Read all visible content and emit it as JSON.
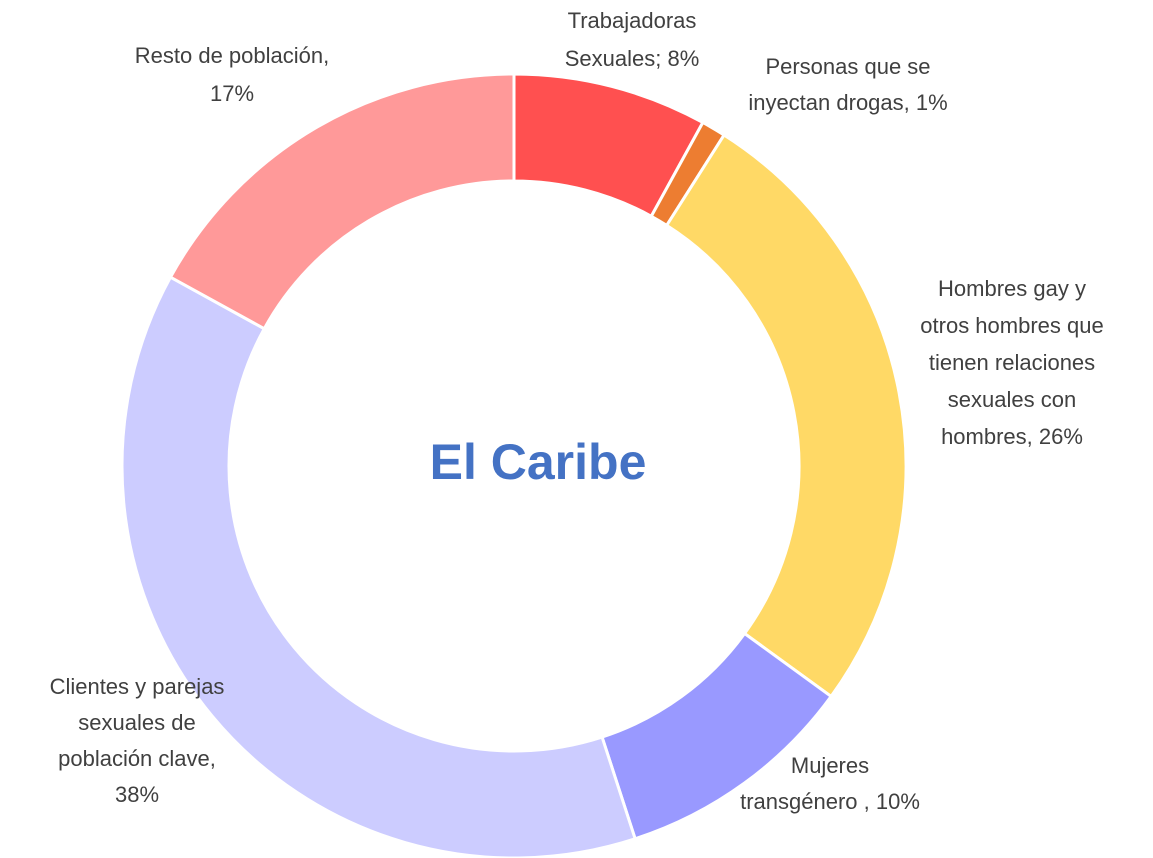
{
  "chart_data": {
    "type": "donut",
    "title": "El Caribe",
    "values": [
      8,
      1,
      26,
      10,
      38,
      17
    ],
    "colors": [
      "#FF5050",
      "#ED7D31",
      "#FFD966",
      "#9999FF",
      "#CCCCFF",
      "#FF9999"
    ],
    "labels": [
      [
        "Trabajadoras",
        "Sexuales; 8%"
      ],
      [
        "Personas que se",
        "inyectan drogas, 1%"
      ],
      [
        "Hombres gay y",
        "otros hombres que",
        "tienen relaciones",
        "sexuales con",
        "hombres, 26%"
      ],
      [
        "Mujeres",
        "transgénero , 10%"
      ],
      [
        "Clientes y parejas",
        "sexuales de",
        "población clave,",
        "38%"
      ],
      [
        "Resto de población,",
        "17%"
      ]
    ]
  }
}
